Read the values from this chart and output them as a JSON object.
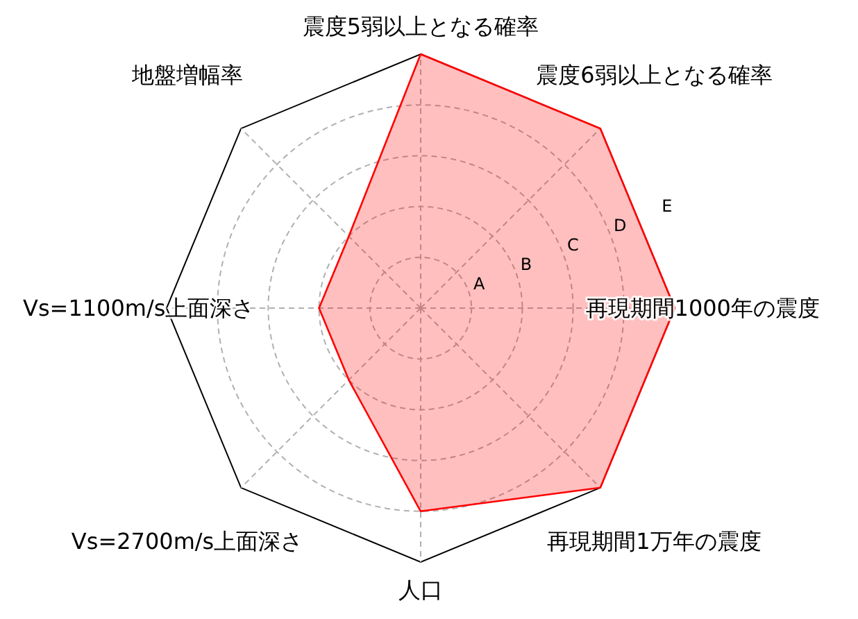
{
  "chart_data": {
    "type": "radar",
    "categories": [
      "震度5弱以上となる確率",
      "震度6弱以上となる確率",
      "再現期間1000年の震度",
      "再現期間1万年の震度",
      "人口",
      "Vs=2700m/s上面深さ",
      "Vs=1100m/s上面深さ",
      "地盤増幅率"
    ],
    "series": [
      {
        "color": "#ff0000",
        "values": [
          5,
          5,
          5,
          5,
          4,
          2,
          2,
          2
        ]
      }
    ],
    "ylim": [
      0,
      5
    ],
    "yticks": [
      {
        "value": 1,
        "label": "A"
      },
      {
        "value": 2,
        "label": "B"
      },
      {
        "value": 3,
        "label": "C"
      },
      {
        "value": 4,
        "label": "D"
      },
      {
        "value": 5,
        "label": "E"
      }
    ],
    "grid": true
  }
}
